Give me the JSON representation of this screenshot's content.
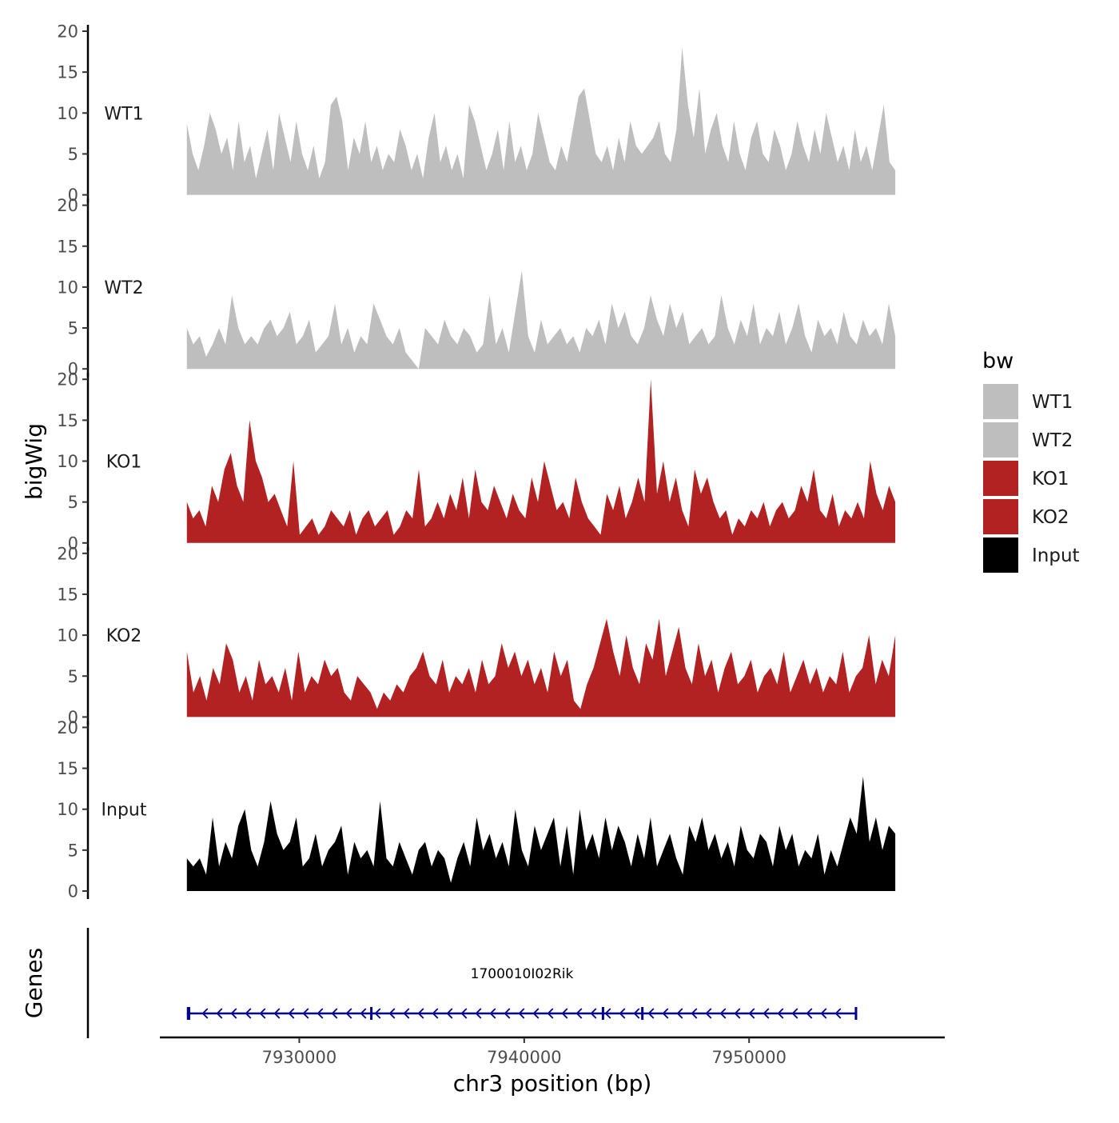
{
  "chart_data": {
    "type": "area",
    "chromosome": "chr3",
    "xlabel": "chr3 position (bp)",
    "ylabel": "bigWig",
    "genes_label": "Genes",
    "xlim": [
      7923800,
      7958700
    ],
    "x_ticks": [
      7930000,
      7940000,
      7950000
    ],
    "x_tick_labels": [
      "7930000",
      "7940000",
      "7950000"
    ],
    "ylim": [
      0,
      20
    ],
    "y_ticks": [
      0,
      5,
      10,
      15,
      20
    ],
    "y_tick_labels": [
      "0",
      "5",
      "10",
      "15",
      "20"
    ],
    "legend": {
      "title": "bw",
      "position": "right",
      "entries": [
        {
          "label": "WT1",
          "color": "#bebebe"
        },
        {
          "label": "WT2",
          "color": "#bebebe"
        },
        {
          "label": "KO1",
          "color": "#b22222"
        },
        {
          "label": "KO2",
          "color": "#b22222"
        },
        {
          "label": "Input",
          "color": "#000000"
        }
      ]
    },
    "tracks": [
      {
        "name": "WT1",
        "color": "#bebebe",
        "x_start": 7925000,
        "x_end": 7956500,
        "values": [
          8.7,
          5,
          3,
          6,
          10,
          8,
          5,
          7,
          3,
          9,
          4,
          6,
          2,
          5,
          8,
          3,
          10,
          7,
          4,
          9,
          5,
          3,
          6,
          2,
          4,
          11,
          12,
          9,
          3,
          7,
          5,
          9,
          4,
          6,
          3,
          5,
          4,
          8,
          6,
          3,
          5,
          2,
          7,
          10,
          4,
          6,
          3,
          5,
          2,
          11,
          9,
          6,
          3,
          5,
          8,
          3,
          9,
          4,
          6,
          3,
          5,
          10,
          7,
          4,
          3,
          6,
          4,
          8,
          12,
          13,
          9,
          5,
          4,
          6,
          3,
          7,
          4,
          9,
          6,
          5,
          6,
          7,
          9,
          5,
          4,
          8,
          18,
          11,
          7,
          13,
          5,
          8,
          10,
          6,
          4,
          9,
          5,
          3,
          7,
          9,
          5,
          4,
          8,
          6,
          3,
          5,
          9,
          6,
          4,
          8,
          5,
          10,
          7,
          4,
          6,
          3,
          8,
          4,
          6,
          3,
          7,
          11,
          4,
          3
        ]
      },
      {
        "name": "WT2",
        "color": "#bebebe",
        "x_start": 7925000,
        "x_end": 7956500,
        "values": [
          5,
          3,
          4,
          1.5,
          3,
          5,
          3,
          9,
          5,
          3,
          4,
          3,
          5,
          6,
          4,
          5,
          7,
          3,
          4,
          6,
          2,
          3,
          4,
          8,
          3,
          5,
          2,
          4,
          3,
          8,
          6,
          4,
          3,
          5,
          2,
          1,
          0,
          5,
          4,
          3,
          6,
          4,
          3,
          5,
          4,
          2,
          3,
          9,
          3,
          5,
          2,
          7,
          12,
          4,
          2,
          6,
          3,
          4,
          5,
          3,
          4,
          2,
          5,
          4,
          6,
          3,
          8,
          5,
          7,
          4,
          3,
          5,
          9,
          6,
          4,
          8,
          5,
          7,
          3,
          4,
          5,
          3,
          4,
          9,
          5,
          3,
          6,
          4,
          8,
          3,
          5,
          4,
          7,
          3,
          5,
          8,
          4,
          2,
          6,
          4,
          5,
          3,
          7,
          4,
          3,
          6,
          4,
          5,
          3,
          8,
          4
        ]
      },
      {
        "name": "KO1",
        "color": "#b22222",
        "x_start": 7925000,
        "x_end": 7956500,
        "values": [
          5,
          3,
          4,
          2,
          7,
          5,
          9,
          11,
          7,
          5,
          15,
          10,
          8,
          5,
          6,
          4,
          2,
          10,
          1,
          2,
          3,
          1,
          2,
          4,
          3,
          2,
          4,
          1,
          3,
          4,
          2,
          3,
          4,
          1,
          2,
          4,
          3,
          9,
          2,
          3,
          5,
          3,
          6,
          4,
          8,
          3,
          9,
          5,
          4,
          7,
          5,
          3,
          6,
          4,
          3,
          8,
          5,
          10,
          7,
          4,
          5,
          3,
          8,
          5,
          3,
          2,
          1,
          6,
          4,
          7,
          3,
          5,
          8,
          5,
          20,
          6,
          10,
          5,
          8,
          4,
          2,
          9,
          6,
          8,
          5,
          3,
          4,
          1,
          3,
          2,
          4,
          3,
          5,
          2,
          4,
          5,
          3,
          4,
          7,
          5,
          9,
          4,
          3,
          6,
          2,
          4,
          3,
          5,
          3,
          10,
          6,
          4,
          7,
          5
        ]
      },
      {
        "name": "KO2",
        "color": "#b22222",
        "x_start": 7925000,
        "x_end": 7956500,
        "values": [
          8,
          3,
          5,
          2,
          6,
          4,
          9,
          7,
          3,
          5,
          2,
          7,
          4,
          5,
          3,
          6,
          2,
          8,
          3,
          5,
          4,
          7,
          5,
          6,
          3,
          2,
          5,
          4,
          3,
          1,
          3,
          2,
          4,
          3,
          5,
          6,
          8,
          5,
          4,
          7,
          3,
          5,
          4,
          6,
          3,
          7,
          4,
          5,
          9,
          6,
          8,
          5,
          7,
          4,
          6,
          3,
          8,
          5,
          7,
          2,
          1,
          4,
          6,
          9,
          12,
          8,
          5,
          10,
          6,
          4,
          9,
          7,
          12,
          5,
          8,
          11,
          6,
          4,
          9,
          5,
          7,
          3,
          6,
          8,
          4,
          5,
          7,
          3,
          5,
          6,
          4,
          8,
          3,
          5,
          7,
          4,
          6,
          3,
          5,
          4,
          8,
          3,
          5,
          6,
          10,
          4,
          7,
          5,
          10
        ]
      },
      {
        "name": "Input",
        "color": "#000000",
        "x_start": 7925000,
        "x_end": 7956500,
        "values": [
          4,
          3,
          4,
          2,
          9,
          3,
          6,
          4,
          8,
          10,
          5,
          3,
          6,
          11,
          7,
          5,
          6,
          9,
          3,
          4,
          7,
          3,
          5,
          6,
          8,
          2,
          6,
          4,
          5,
          3,
          11,
          4,
          3,
          6,
          4,
          2,
          5,
          6,
          3,
          5,
          4,
          1,
          4,
          6,
          3,
          9,
          5,
          7,
          4,
          6,
          3,
          10,
          5,
          3,
          8,
          5,
          7,
          9,
          3,
          8,
          2,
          10,
          5,
          7,
          4,
          9,
          5,
          8,
          6,
          3,
          7,
          4,
          9,
          3,
          5,
          7,
          4,
          2,
          8,
          6,
          9,
          5,
          7,
          4,
          6,
          3,
          8,
          5,
          4,
          7,
          6,
          3,
          8,
          5,
          7,
          3,
          5,
          4,
          7,
          2,
          5,
          3,
          6,
          9,
          7,
          14,
          6,
          9,
          5,
          8,
          7
        ]
      }
    ],
    "genes": [
      {
        "name": "1700010I02Rik",
        "strand": "-",
        "color": "#00008b",
        "start": 7925000,
        "end": 7954800,
        "exons": [
          [
            7925000,
            7925150
          ],
          [
            7933150,
            7933250
          ],
          [
            7943450,
            7943500
          ],
          [
            7945200,
            7945300
          ],
          [
            7954700,
            7954800
          ]
        ]
      }
    ]
  }
}
